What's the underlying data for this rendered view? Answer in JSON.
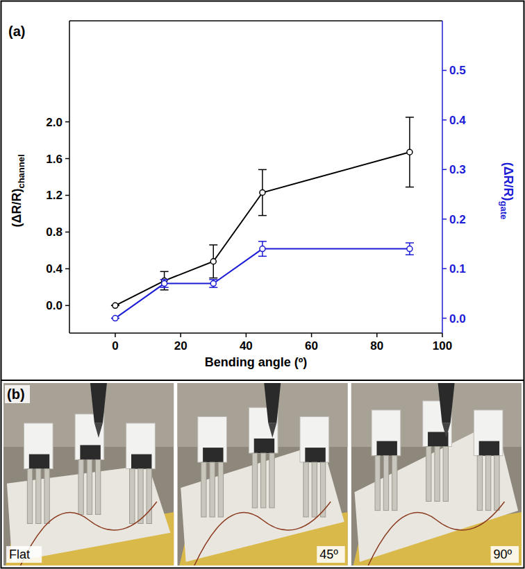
{
  "chart_data": {
    "type": "line",
    "title": "(a)",
    "x_label": "Bending angle (º)",
    "y_label": "(ΔR/R)channel",
    "y2_label": "(ΔR/R)gate",
    "x": [
      0,
      15,
      30,
      45,
      90
    ],
    "xlim": [
      -14,
      100
    ],
    "xticks": [
      0,
      20,
      40,
      60,
      80,
      100
    ],
    "ylim": [
      -0.3,
      3.1
    ],
    "yticks": [
      {
        "value": 0,
        "label": "0.0"
      },
      0.4,
      0.8,
      1.2,
      1.6,
      {
        "value": 2,
        "label": "2.0"
      }
    ],
    "y2lim": [
      -0.03,
      0.6
    ],
    "y2ticks": [
      {
        "value": 0,
        "label": "0.0"
      },
      0.1,
      0.2,
      0.3,
      0.4,
      0.5
    ],
    "series": [
      {
        "color": "#000000",
        "marker": "open-circle",
        "line_style": "solid",
        "values": [
          0,
          0.27,
          0.48,
          1.23,
          1.67
        ],
        "errors": [
          0,
          0.1,
          0.18,
          0.25,
          0.38
        ]
      },
      {
        "color": "#1c1cd6",
        "marker": "open-circle",
        "line_style": "solid",
        "axis": "y2",
        "values": [
          0,
          0.07,
          0.07,
          0.14,
          0.14
        ],
        "errors": [
          0,
          0.008,
          0.008,
          0.015,
          0.012
        ]
      }
    ]
  },
  "photos": {
    "panel_label": "(b)",
    "images": [
      {
        "label": "Flat"
      },
      {
        "label": "45º"
      },
      {
        "label": "90º"
      }
    ]
  }
}
